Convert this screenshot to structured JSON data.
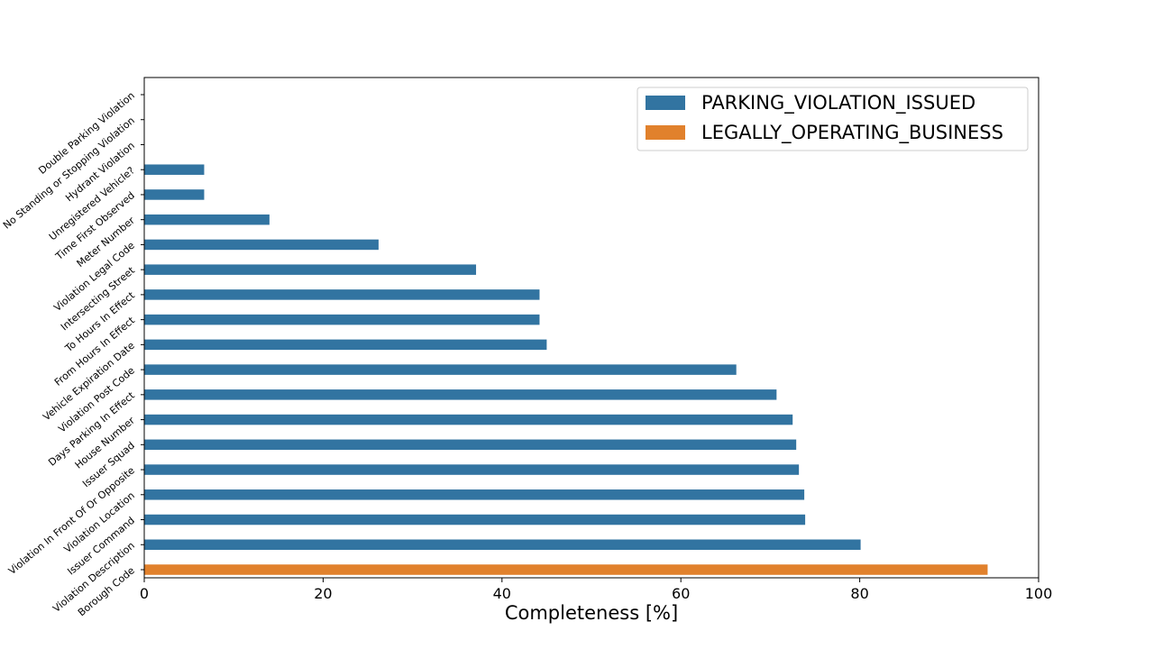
{
  "chart_data": {
    "type": "bar",
    "orientation": "horizontal",
    "xlabel": "Completeness [%]",
    "ylabel": "",
    "xlim": [
      0,
      100
    ],
    "xticks": [
      0,
      20,
      40,
      60,
      80,
      100
    ],
    "grid": false,
    "legend_position": "top-right",
    "categories": [
      "Double Parking Violation",
      "No Standing or Stopping Violation",
      "Hydrant Violation",
      "Unregistered Vehicle?",
      "Time First Observed",
      "Meter Number",
      "Violation Legal Code",
      "Intersecting Street",
      "To Hours In Effect",
      "From Hours In Effect",
      "Vehicle Expiration Date",
      "Violation Post Code",
      "Days Parking In Effect",
      "House Number",
      "Issuer Squad",
      "Violation In Front Of Or Opposite",
      "Violation Location",
      "Issuer Command",
      "Violation Description",
      "Borough Code"
    ],
    "series": [
      {
        "name": "PARKING_VIOLATION_ISSUED",
        "color": "#3274a1",
        "values": [
          0,
          0,
          0,
          6.7,
          6.7,
          14.0,
          26.2,
          37.1,
          44.2,
          44.2,
          45.0,
          66.2,
          70.7,
          72.5,
          72.9,
          73.2,
          73.8,
          73.9,
          80.1,
          null
        ]
      },
      {
        "name": "LEGALLY_OPERATING_BUSINESS",
        "color": "#e1812c",
        "values": [
          null,
          null,
          null,
          null,
          null,
          null,
          null,
          null,
          null,
          null,
          null,
          null,
          null,
          null,
          null,
          null,
          null,
          null,
          null,
          94.3
        ]
      }
    ]
  }
}
